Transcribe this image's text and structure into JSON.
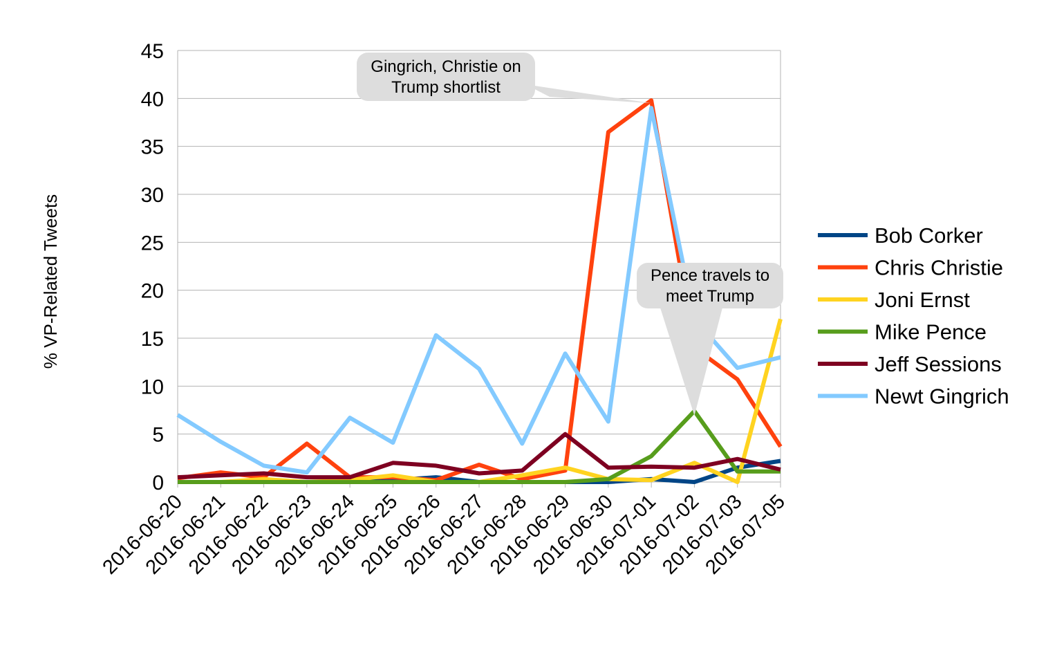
{
  "chart_data": {
    "type": "line",
    "title": "",
    "xlabel": "",
    "ylabel": "% VP-Related Tweets",
    "ylim": [
      0,
      45
    ],
    "yticks": [
      0,
      5,
      10,
      15,
      20,
      25,
      30,
      35,
      40,
      45
    ],
    "grid": "horizontal",
    "legend_position": "right",
    "categories": [
      "2016-06-20",
      "2016-06-21",
      "2016-06-22",
      "2016-06-23",
      "2016-06-24",
      "2016-06-25",
      "2016-06-26",
      "2016-06-27",
      "2016-06-28",
      "2016-06-29",
      "2016-06-30",
      "2016-07-01",
      "2016-07-02",
      "2016-07-03",
      "2016-07-05"
    ],
    "series": [
      {
        "name": "Bob Corker",
        "color": "#004586",
        "values": [
          0,
          0,
          0,
          0,
          0,
          0.2,
          0.5,
          0,
          0,
          0,
          0,
          0.3,
          0,
          1.5,
          2.2
        ]
      },
      {
        "name": "Chris Christie",
        "color": "#ff420e",
        "values": [
          0.4,
          1.0,
          0.5,
          4.0,
          0.5,
          0.5,
          0.2,
          1.8,
          0.3,
          1.2,
          36.5,
          39.8,
          14.0,
          10.7,
          3.7
        ]
      },
      {
        "name": "Joni Ernst",
        "color": "#ffd320",
        "values": [
          0,
          0,
          0.3,
          0,
          0.2,
          0.7,
          0,
          0,
          0.7,
          1.5,
          0.3,
          0.2,
          2.0,
          0,
          17.0
        ]
      },
      {
        "name": "Mike Pence",
        "color": "#579d1c",
        "values": [
          0,
          0,
          0,
          0,
          0,
          0,
          0,
          0,
          0,
          0,
          0.3,
          2.7,
          7.4,
          1.1,
          1.1
        ]
      },
      {
        "name": "Jeff Sessions",
        "color": "#7e0021",
        "values": [
          0.5,
          0.7,
          0.9,
          0.5,
          0.5,
          2.0,
          1.7,
          0.9,
          1.2,
          5.0,
          1.5,
          1.6,
          1.5,
          2.4,
          1.3
        ]
      },
      {
        "name": "Newt Gingrich",
        "color": "#83caff",
        "values": [
          7.0,
          4.2,
          1.7,
          1.0,
          6.7,
          4.1,
          15.3,
          11.8,
          4.0,
          13.4,
          6.3,
          39.0,
          17.0,
          11.9,
          13.0
        ]
      }
    ],
    "annotations": [
      {
        "lines": [
          "Gingrich, Christie on",
          "Trump shortlist"
        ],
        "points_to": {
          "category": "2016-07-01",
          "value": 39.5
        }
      },
      {
        "lines": [
          "Pence travels to",
          "meet Trump"
        ],
        "points_to": {
          "category": "2016-07-02",
          "value": 7.5
        }
      }
    ]
  }
}
